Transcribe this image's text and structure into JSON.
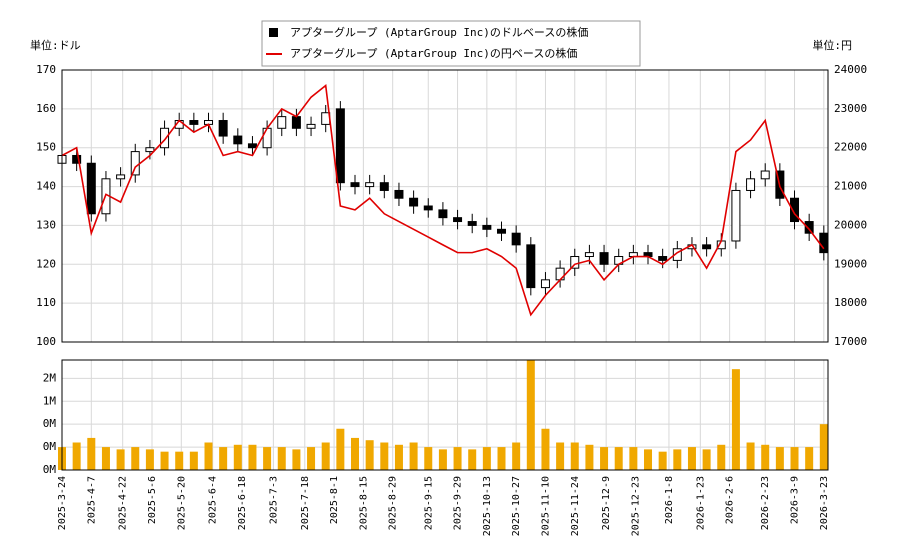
{
  "chart_data": [
    {
      "type": "candlestick",
      "y_unit": "単位:ドル",
      "y2_unit": "単位:円",
      "x": [
        "2025-3-24",
        "2025-3-31",
        "2025-4-7",
        "2025-4-14",
        "2025-4-21",
        "2025-4-28",
        "2025-5-5",
        "2025-5-12",
        "2025-5-19",
        "2025-5-26",
        "2025-6-2",
        "2025-6-9",
        "2025-6-16",
        "2025-6-23",
        "2025-6-30",
        "2025-7-7",
        "2025-7-14",
        "2025-7-21",
        "2025-7-28",
        "2025-8-4",
        "2025-8-11",
        "2025-8-18",
        "2025-8-25",
        "2025-9-1",
        "2025-9-8",
        "2025-9-15",
        "2025-9-22",
        "2025-9-29",
        "2025-10-6",
        "2025-10-13",
        "2025-10-20",
        "2025-10-27",
        "2025-11-3",
        "2025-11-10",
        "2025-11-17",
        "2025-11-24",
        "2025-12-1",
        "2025-12-8",
        "2025-12-15",
        "2025-12-22",
        "2025-12-29",
        "2026-1-5",
        "2026-1-12",
        "2026-1-19",
        "2026-1-26",
        "2026-2-2",
        "2026-2-9",
        "2026-2-16",
        "2026-2-23",
        "2026-3-2",
        "2026-3-9",
        "2026-3-16",
        "2026-3-23"
      ],
      "xlim": [
        "2025-3-24",
        "2026-3-25"
      ],
      "series": [
        {
          "name": "アプターグループ (AptarGroup Inc)のドルベースの株価",
          "color": "#000000",
          "open": [
            146,
            148,
            146,
            133,
            142,
            143,
            149,
            150,
            155,
            157,
            156,
            157,
            153,
            151,
            150,
            155,
            158,
            155,
            156,
            160,
            141,
            140,
            141,
            139,
            137,
            135,
            134,
            132,
            131,
            130,
            129,
            128,
            125,
            114,
            116,
            119,
            122,
            123,
            120,
            122,
            123,
            122,
            121,
            124,
            125,
            124,
            126,
            139,
            142,
            144,
            137,
            131,
            128
          ],
          "high": [
            150,
            150,
            148,
            144,
            145,
            151,
            152,
            157,
            159,
            159,
            159,
            159,
            155,
            153,
            157,
            160,
            160,
            158,
            161,
            162,
            143,
            143,
            143,
            141,
            139,
            137,
            136,
            134,
            133,
            132,
            131,
            130,
            127,
            118,
            121,
            124,
            125,
            125,
            124,
            125,
            125,
            124,
            126,
            127,
            127,
            128,
            141,
            144,
            146,
            146,
            139,
            133,
            130
          ],
          "low": [
            144,
            144,
            131,
            131,
            140,
            141,
            147,
            148,
            153,
            154,
            154,
            151,
            149,
            148,
            148,
            153,
            153,
            153,
            154,
            139,
            138,
            138,
            137,
            135,
            133,
            132,
            130,
            129,
            128,
            127,
            126,
            123,
            112,
            112,
            114,
            117,
            120,
            118,
            118,
            120,
            120,
            119,
            119,
            122,
            122,
            122,
            124,
            137,
            140,
            135,
            129,
            126,
            121
          ],
          "close": [
            148,
            146,
            133,
            142,
            143,
            149,
            150,
            155,
            157,
            156,
            157,
            153,
            151,
            150,
            155,
            158,
            155,
            156,
            159,
            141,
            140,
            141,
            139,
            137,
            135,
            134,
            132,
            131,
            130,
            129,
            128,
            125,
            114,
            116,
            119,
            122,
            123,
            120,
            122,
            123,
            122,
            121,
            124,
            125,
            124,
            126,
            139,
            142,
            144,
            137,
            131,
            128,
            123
          ]
        },
        {
          "name": "アプターグループ (AptarGroup Inc)の円ベースの株価",
          "color": "#e00000",
          "axis": "y2",
          "values": [
            21800,
            22000,
            19800,
            20800,
            20600,
            21500,
            21800,
            22200,
            22700,
            22400,
            22600,
            21800,
            21900,
            21800,
            22500,
            23000,
            22800,
            23300,
            23600,
            20500,
            20400,
            20700,
            20300,
            20100,
            19900,
            19700,
            19500,
            19300,
            19300,
            19400,
            19200,
            18900,
            17700,
            18200,
            18600,
            19000,
            19100,
            18600,
            19000,
            19200,
            19200,
            19000,
            19300,
            19500,
            18900,
            19600,
            21900,
            22200,
            22700,
            21000,
            20300,
            19900,
            19400
          ]
        }
      ],
      "ylim": [
        100,
        170
      ],
      "yticks": [
        100,
        110,
        120,
        130,
        140,
        150,
        160,
        170
      ],
      "y2lim": [
        17000,
        24000
      ],
      "y2ticks": [
        17000,
        18000,
        19000,
        20000,
        21000,
        22000,
        23000,
        24000
      ],
      "grid": true
    },
    {
      "type": "bar",
      "x": [
        "2025-3-24",
        "2025-3-31",
        "2025-4-7",
        "2025-4-14",
        "2025-4-21",
        "2025-4-28",
        "2025-5-5",
        "2025-5-12",
        "2025-5-19",
        "2025-5-26",
        "2025-6-2",
        "2025-6-9",
        "2025-6-16",
        "2025-6-23",
        "2025-6-30",
        "2025-7-7",
        "2025-7-14",
        "2025-7-21",
        "2025-7-28",
        "2025-8-4",
        "2025-8-11",
        "2025-8-18",
        "2025-8-25",
        "2025-9-1",
        "2025-9-8",
        "2025-9-15",
        "2025-9-22",
        "2025-9-29",
        "2025-10-6",
        "2025-10-13",
        "2025-10-20",
        "2025-10-27",
        "2025-11-3",
        "2025-11-10",
        "2025-11-17",
        "2025-11-24",
        "2025-12-1",
        "2025-12-8",
        "2025-12-15",
        "2025-12-22",
        "2025-12-29",
        "2026-1-5",
        "2026-1-12",
        "2026-1-19",
        "2026-1-26",
        "2026-2-2",
        "2026-2-9",
        "2026-2-16",
        "2026-2-23",
        "2026-3-2",
        "2026-3-9",
        "2026-3-16",
        "2026-3-23"
      ],
      "values": [
        0.5,
        0.6,
        0.7,
        0.5,
        0.45,
        0.5,
        0.45,
        0.4,
        0.4,
        0.4,
        0.6,
        0.5,
        0.55,
        0.55,
        0.5,
        0.5,
        0.45,
        0.5,
        0.6,
        0.9,
        0.7,
        0.65,
        0.6,
        0.55,
        0.6,
        0.5,
        0.45,
        0.5,
        0.45,
        0.5,
        0.5,
        0.6,
        2.4,
        0.9,
        0.6,
        0.6,
        0.55,
        0.5,
        0.5,
        0.5,
        0.45,
        0.4,
        0.45,
        0.5,
        0.45,
        0.55,
        2.2,
        0.6,
        0.55,
        0.5,
        0.5,
        0.5,
        1.0
      ],
      "color": "#f0a800",
      "xlim": [
        "2025-3-24",
        "2026-3-25"
      ],
      "xticks": [
        "2025-3-24",
        "2025-4-7",
        "2025-4-22",
        "2025-5-6",
        "2025-5-20",
        "2025-6-4",
        "2025-6-18",
        "2025-7-3",
        "2025-7-18",
        "2025-8-1",
        "2025-8-15",
        "2025-8-29",
        "2025-9-15",
        "2025-9-29",
        "2025-10-13",
        "2025-10-27",
        "2025-11-10",
        "2025-11-24",
        "2025-12-9",
        "2025-12-23",
        "2026-1-8",
        "2026-1-23",
        "2026-2-6",
        "2026-2-23",
        "2026-3-9",
        "2026-3-23"
      ],
      "ylim": [
        0,
        2.4
      ],
      "yticks": [
        {
          "value": 0,
          "label": "0M"
        },
        {
          "value": 0.5,
          "label": "0M"
        },
        {
          "value": 1,
          "label": "0M"
        },
        {
          "value": 1.5,
          "label": "1M"
        },
        {
          "value": 2,
          "label": "2M"
        }
      ],
      "grid": true
    }
  ]
}
